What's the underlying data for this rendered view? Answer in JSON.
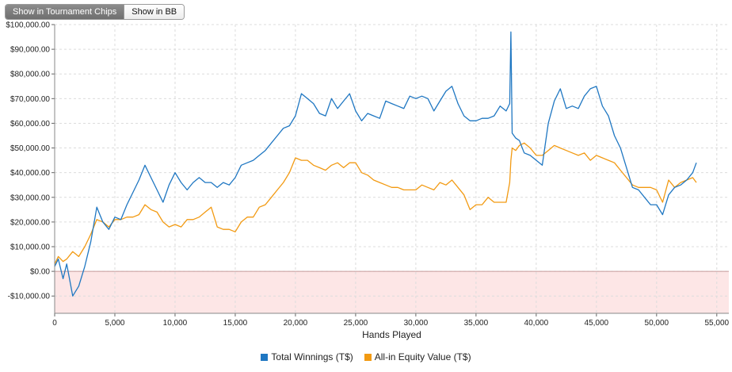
{
  "toolbar": {
    "tournament_chips_label": "Show in Tournament Chips",
    "bb_label": "Show in BB"
  },
  "chart_data": {
    "type": "line",
    "xlabel": "Hands Played",
    "ylabel": "",
    "xlim": [
      0,
      56000
    ],
    "ylim": [
      -17000,
      100000
    ],
    "x_ticks": [
      0,
      5000,
      10000,
      15000,
      20000,
      25000,
      30000,
      35000,
      40000,
      45000,
      50000,
      55000
    ],
    "x_tick_labels": [
      "0",
      "5,000",
      "10,000",
      "15,000",
      "20,000",
      "25,000",
      "30,000",
      "35,000",
      "40,000",
      "45,000",
      "50,000",
      "55,000"
    ],
    "y_ticks": [
      100000,
      90000,
      80000,
      70000,
      60000,
      50000,
      40000,
      30000,
      20000,
      10000,
      0,
      -10000
    ],
    "y_tick_labels": [
      "$100,000.00",
      "$90,000.00",
      "$80,000.00",
      "$70,000.00",
      "$60,000.00",
      "$50,000.00",
      "$40,000.00",
      "$30,000.00",
      "$20,000.00",
      "$10,000.00",
      "$0.00",
      "-$10,000.00"
    ],
    "grid": true,
    "legend_position": "bottom",
    "negative_region_color": "#fde6e6",
    "zero_line_color": "#c79a9a",
    "series": [
      {
        "name": "Total Winnings (T$)",
        "color": "#1f77c2",
        "x": [
          0,
          300,
          700,
          1000,
          1500,
          2000,
          2500,
          3000,
          3500,
          4000,
          4500,
          5000,
          5500,
          6000,
          6500,
          7000,
          7500,
          8000,
          8500,
          9000,
          9500,
          10000,
          10500,
          11000,
          11500,
          12000,
          12500,
          13000,
          13500,
          14000,
          14500,
          15000,
          15500,
          16000,
          16500,
          17000,
          17500,
          18000,
          18500,
          19000,
          19500,
          20000,
          20500,
          21000,
          21500,
          22000,
          22500,
          23000,
          23500,
          24000,
          24500,
          25000,
          25500,
          26000,
          26500,
          27000,
          27500,
          28000,
          28500,
          29000,
          29500,
          30000,
          30500,
          31000,
          31500,
          32000,
          32500,
          33000,
          33500,
          34000,
          34500,
          35000,
          35500,
          36000,
          36500,
          37000,
          37500,
          37800,
          37900,
          38000,
          38300,
          38600,
          39000,
          39500,
          40000,
          40500,
          41000,
          41500,
          42000,
          42500,
          43000,
          43500,
          44000,
          44500,
          45000,
          45500,
          46000,
          46500,
          47000,
          47500,
          48000,
          48500,
          49000,
          49500,
          50000,
          50500,
          51000,
          51500,
          52000,
          52500,
          53000,
          53300
        ],
        "y": [
          2000,
          5000,
          -3000,
          3000,
          -10000,
          -6000,
          2000,
          12000,
          26000,
          20000,
          17000,
          22000,
          21000,
          27000,
          32000,
          37000,
          43000,
          38000,
          33000,
          28000,
          35000,
          40000,
          36000,
          33000,
          36000,
          38000,
          36000,
          36000,
          34000,
          36000,
          35000,
          38000,
          43000,
          44000,
          45000,
          47000,
          49000,
          52000,
          55000,
          58000,
          59000,
          63000,
          72000,
          70000,
          68000,
          64000,
          63000,
          70000,
          66000,
          69000,
          72000,
          65000,
          61000,
          64000,
          63000,
          62000,
          69000,
          68000,
          67000,
          66000,
          71000,
          70000,
          71000,
          70000,
          65000,
          69000,
          73000,
          75000,
          68000,
          63000,
          61000,
          61000,
          62000,
          62000,
          63000,
          67000,
          65000,
          68000,
          97000,
          56000,
          54000,
          53000,
          48000,
          47000,
          45000,
          43000,
          60000,
          69000,
          74000,
          66000,
          67000,
          66000,
          71000,
          74000,
          75000,
          67000,
          63000,
          55000,
          50000,
          42000,
          34000,
          33000,
          30000,
          27000,
          27000,
          23000,
          31000,
          34000,
          35000,
          37000,
          40000,
          44000
        ]
      },
      {
        "name": "All-in Equity Value (T$)",
        "color": "#f29a12",
        "x": [
          0,
          300,
          700,
          1000,
          1500,
          2000,
          2500,
          3000,
          3500,
          4000,
          4500,
          5000,
          5500,
          6000,
          6500,
          7000,
          7500,
          8000,
          8500,
          9000,
          9500,
          10000,
          10500,
          11000,
          11500,
          12000,
          12500,
          13000,
          13500,
          14000,
          14500,
          15000,
          15500,
          16000,
          16500,
          17000,
          17500,
          18000,
          18500,
          19000,
          19500,
          20000,
          20500,
          21000,
          21500,
          22000,
          22500,
          23000,
          23500,
          24000,
          24500,
          25000,
          25500,
          26000,
          26500,
          27000,
          27500,
          28000,
          28500,
          29000,
          29500,
          30000,
          30500,
          31000,
          31500,
          32000,
          32500,
          33000,
          33500,
          34000,
          34500,
          35000,
          35500,
          36000,
          36500,
          37000,
          37500,
          37800,
          37900,
          38000,
          38300,
          38600,
          39000,
          39500,
          40000,
          40500,
          41000,
          41500,
          42000,
          42500,
          43000,
          43500,
          44000,
          44500,
          45000,
          45500,
          46000,
          46500,
          47000,
          47500,
          48000,
          48500,
          49000,
          49500,
          50000,
          50500,
          51000,
          51500,
          52000,
          52500,
          53000,
          53300
        ],
        "y": [
          3000,
          6000,
          4000,
          5000,
          8000,
          6000,
          10000,
          15000,
          21000,
          20000,
          18000,
          21000,
          21000,
          22000,
          22000,
          23000,
          27000,
          25000,
          24000,
          20000,
          18000,
          19000,
          18000,
          21000,
          21000,
          22000,
          24000,
          26000,
          18000,
          17000,
          17000,
          16000,
          20000,
          22000,
          22000,
          26000,
          27000,
          30000,
          33000,
          36000,
          40000,
          46000,
          45000,
          45000,
          43000,
          42000,
          41000,
          43000,
          44000,
          42000,
          44000,
          44000,
          40000,
          39000,
          37000,
          36000,
          35000,
          34000,
          34000,
          33000,
          33000,
          33000,
          35000,
          34000,
          33000,
          36000,
          35000,
          37000,
          34000,
          31000,
          25000,
          27000,
          27000,
          30000,
          28000,
          28000,
          28000,
          36000,
          45000,
          50000,
          49000,
          51000,
          52000,
          50000,
          47000,
          47000,
          49000,
          51000,
          50000,
          49000,
          48000,
          47000,
          48000,
          45000,
          47000,
          46000,
          45000,
          44000,
          41000,
          38000,
          35000,
          34000,
          34000,
          34000,
          33000,
          28000,
          37000,
          34000,
          36000,
          37000,
          38000,
          36000
        ]
      }
    ]
  }
}
